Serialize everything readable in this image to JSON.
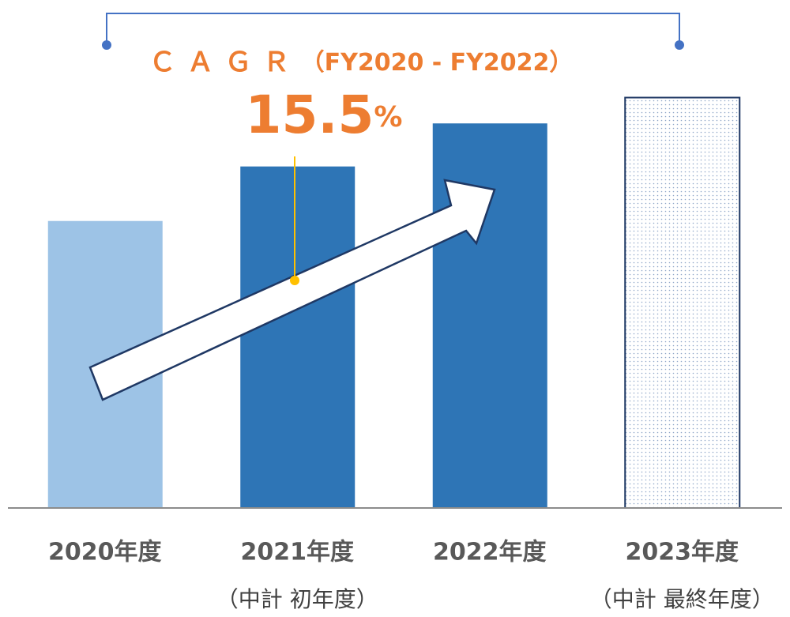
{
  "chart_data": {
    "type": "bar",
    "categories": [
      "2020年度",
      "2021年度",
      "2022年度",
      "2023年度"
    ],
    "sublabels": [
      null,
      "（中計 初年度）",
      null,
      "（中計 最終年度）"
    ],
    "values": [
      100,
      119,
      134,
      143
    ],
    "colors": [
      "#9dc3e6",
      "#2e75b6",
      "#2e75b6",
      "#ffffff"
    ],
    "dotted": [
      false,
      false,
      false,
      true
    ],
    "ylim": [
      0,
      177
    ],
    "annotation": {
      "label": "ＣＡＧＲ",
      "period": "（FY2020 - FY2022）",
      "value": 15.5,
      "unit": "%"
    }
  }
}
